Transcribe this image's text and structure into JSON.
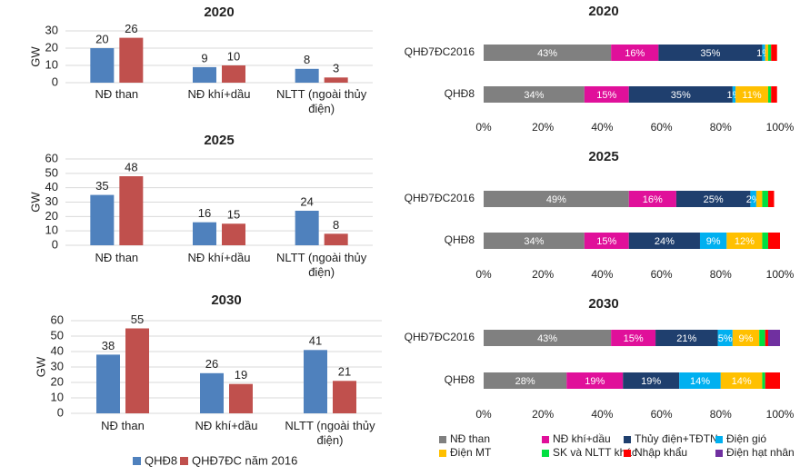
{
  "chart_data": [
    {
      "type": "bar",
      "title": "2020",
      "ylabel": "GW",
      "categories": [
        "NĐ than",
        "NĐ khí+dầu",
        "NLTT (ngoài thủy điện)"
      ],
      "series": [
        {
          "color": "#4f81bd",
          "values": [
            20,
            9,
            8
          ]
        },
        {
          "color": "#c0504d",
          "values": [
            26,
            10,
            3
          ]
        }
      ],
      "ylim": [
        0,
        30
      ],
      "yticks": [
        0,
        10,
        20,
        30
      ],
      "grid": true
    },
    {
      "type": "bar",
      "title": "2025",
      "ylabel": "GW",
      "categories": [
        "NĐ than",
        "NĐ khí+dầu",
        "NLTT (ngoài thủy điện)"
      ],
      "series": [
        {
          "color": "#4f81bd",
          "values": [
            35,
            16,
            24
          ]
        },
        {
          "color": "#c0504d",
          "values": [
            48,
            15,
            8
          ]
        }
      ],
      "ylim": [
        0,
        60
      ],
      "yticks": [
        0,
        10,
        20,
        30,
        40,
        50,
        60
      ],
      "grid": true
    },
    {
      "type": "bar",
      "title": "2030",
      "ylabel": "GW",
      "categories": [
        "NĐ than",
        "NĐ khí+dầu",
        "NLTT (ngoài thủy điện)"
      ],
      "series": [
        {
          "name": "QHĐ8",
          "color": "#4f81bd",
          "values": [
            38,
            26,
            41
          ]
        },
        {
          "name": "QHĐ7ĐC năm 2016",
          "color": "#c0504d",
          "values": [
            55,
            19,
            21
          ]
        }
      ],
      "ylim": [
        0,
        60
      ],
      "yticks": [
        0,
        10,
        20,
        30,
        40,
        50,
        60
      ],
      "grid": true
    },
    {
      "type": "stacked_barh",
      "title": "2020",
      "categories": [
        "QHĐ7ĐC2016",
        "QHĐ8"
      ],
      "series": [
        {
          "color": "#808080",
          "values": [
            43,
            34
          ],
          "value_labels": [
            "43%",
            "34%"
          ]
        },
        {
          "color": "#e0109a",
          "values": [
            16,
            15
          ],
          "value_labels": [
            "16%",
            "15%"
          ]
        },
        {
          "color": "#1f3f6e",
          "values": [
            35,
            35
          ],
          "value_labels": [
            "35%",
            "35%"
          ]
        },
        {
          "color": "#00b0f0",
          "values": [
            1,
            1
          ],
          "value_labels": [
            "1%",
            "1%"
          ]
        },
        {
          "color": "#ffc000",
          "values": [
            1,
            11
          ],
          "value_labels": [
            null,
            "11%"
          ]
        },
        {
          "color": "#00e040",
          "values": [
            1,
            1
          ],
          "value_labels": [
            null,
            null
          ]
        },
        {
          "color": "#ff0000",
          "values": [
            2,
            2
          ],
          "value_labels": [
            null,
            null
          ]
        },
        {
          "color": "#7030a0",
          "values": [
            0,
            0
          ],
          "value_labels": [
            null,
            null
          ]
        }
      ],
      "xlim": [
        0,
        100
      ],
      "xticks": [
        {
          "value": 0,
          "label": "0%"
        },
        {
          "value": 20,
          "label": "20%"
        },
        {
          "value": 40,
          "label": "40%"
        },
        {
          "value": 60,
          "label": "60%"
        },
        {
          "value": 80,
          "label": "80%"
        },
        {
          "value": 100,
          "label": "100%"
        }
      ]
    },
    {
      "type": "stacked_barh",
      "title": "2025",
      "categories": [
        "QHĐ7ĐC2016",
        "QHĐ8"
      ],
      "series": [
        {
          "color": "#808080",
          "values": [
            49,
            34
          ],
          "value_labels": [
            "49%",
            "34%"
          ]
        },
        {
          "color": "#e0109a",
          "values": [
            16,
            15
          ],
          "value_labels": [
            "16%",
            "15%"
          ]
        },
        {
          "color": "#1f3f6e",
          "values": [
            25,
            24
          ],
          "value_labels": [
            "25%",
            "24%"
          ]
        },
        {
          "color": "#00b0f0",
          "values": [
            2,
            9
          ],
          "value_labels": [
            "2%",
            "9%"
          ]
        },
        {
          "color": "#ffc000",
          "values": [
            2,
            12
          ],
          "value_labels": [
            null,
            "12%"
          ]
        },
        {
          "color": "#00e040",
          "values": [
            2,
            2
          ],
          "value_labels": [
            null,
            null
          ]
        },
        {
          "color": "#ff0000",
          "values": [
            2,
            4
          ],
          "value_labels": [
            null,
            null
          ]
        },
        {
          "color": "#7030a0",
          "values": [
            0,
            0
          ],
          "value_labels": [
            null,
            null
          ]
        }
      ],
      "xlim": [
        0,
        100
      ],
      "xticks": [
        {
          "value": 0,
          "label": "0%"
        },
        {
          "value": 20,
          "label": "20%"
        },
        {
          "value": 40,
          "label": "40%"
        },
        {
          "value": 60,
          "label": "60%"
        },
        {
          "value": 80,
          "label": "80%"
        },
        {
          "value": 100,
          "label": "100%"
        }
      ]
    },
    {
      "type": "stacked_barh",
      "title": "2030",
      "categories": [
        "QHĐ7ĐC2016",
        "QHĐ8"
      ],
      "series": [
        {
          "name": "NĐ than",
          "color": "#808080",
          "values": [
            43,
            28
          ],
          "value_labels": [
            "43%",
            "28%"
          ]
        },
        {
          "name": "NĐ khí+dầu",
          "color": "#e0109a",
          "values": [
            15,
            19
          ],
          "value_labels": [
            "15%",
            "19%"
          ]
        },
        {
          "name": "Thủy điện+TĐTN",
          "color": "#1f3f6e",
          "values": [
            21,
            19
          ],
          "value_labels": [
            "21%",
            "19%"
          ]
        },
        {
          "name": "Điện gió",
          "color": "#00b0f0",
          "values": [
            5,
            14
          ],
          "value_labels": [
            "5%",
            "14%"
          ]
        },
        {
          "name": "Điện MT",
          "color": "#ffc000",
          "values": [
            9,
            14
          ],
          "value_labels": [
            "9%",
            "14%"
          ]
        },
        {
          "name": "SK và NLTT khác",
          "color": "#00e040",
          "values": [
            2,
            1
          ],
          "value_labels": [
            null,
            null
          ]
        },
        {
          "name": "Nhập khẩu",
          "color": "#ff0000",
          "values": [
            1,
            5
          ],
          "value_labels": [
            null,
            null
          ]
        },
        {
          "name": "Điện hạt nhân",
          "color": "#7030a0",
          "values": [
            4,
            0
          ],
          "value_labels": [
            null,
            null
          ]
        }
      ],
      "xlim": [
        0,
        100
      ],
      "xticks": [
        {
          "value": 0,
          "label": "0%"
        },
        {
          "value": 20,
          "label": "20%"
        },
        {
          "value": 40,
          "label": "40%"
        },
        {
          "value": 60,
          "label": "60%"
        },
        {
          "value": 80,
          "label": "80%"
        },
        {
          "value": 100,
          "label": "100%"
        }
      ]
    }
  ]
}
